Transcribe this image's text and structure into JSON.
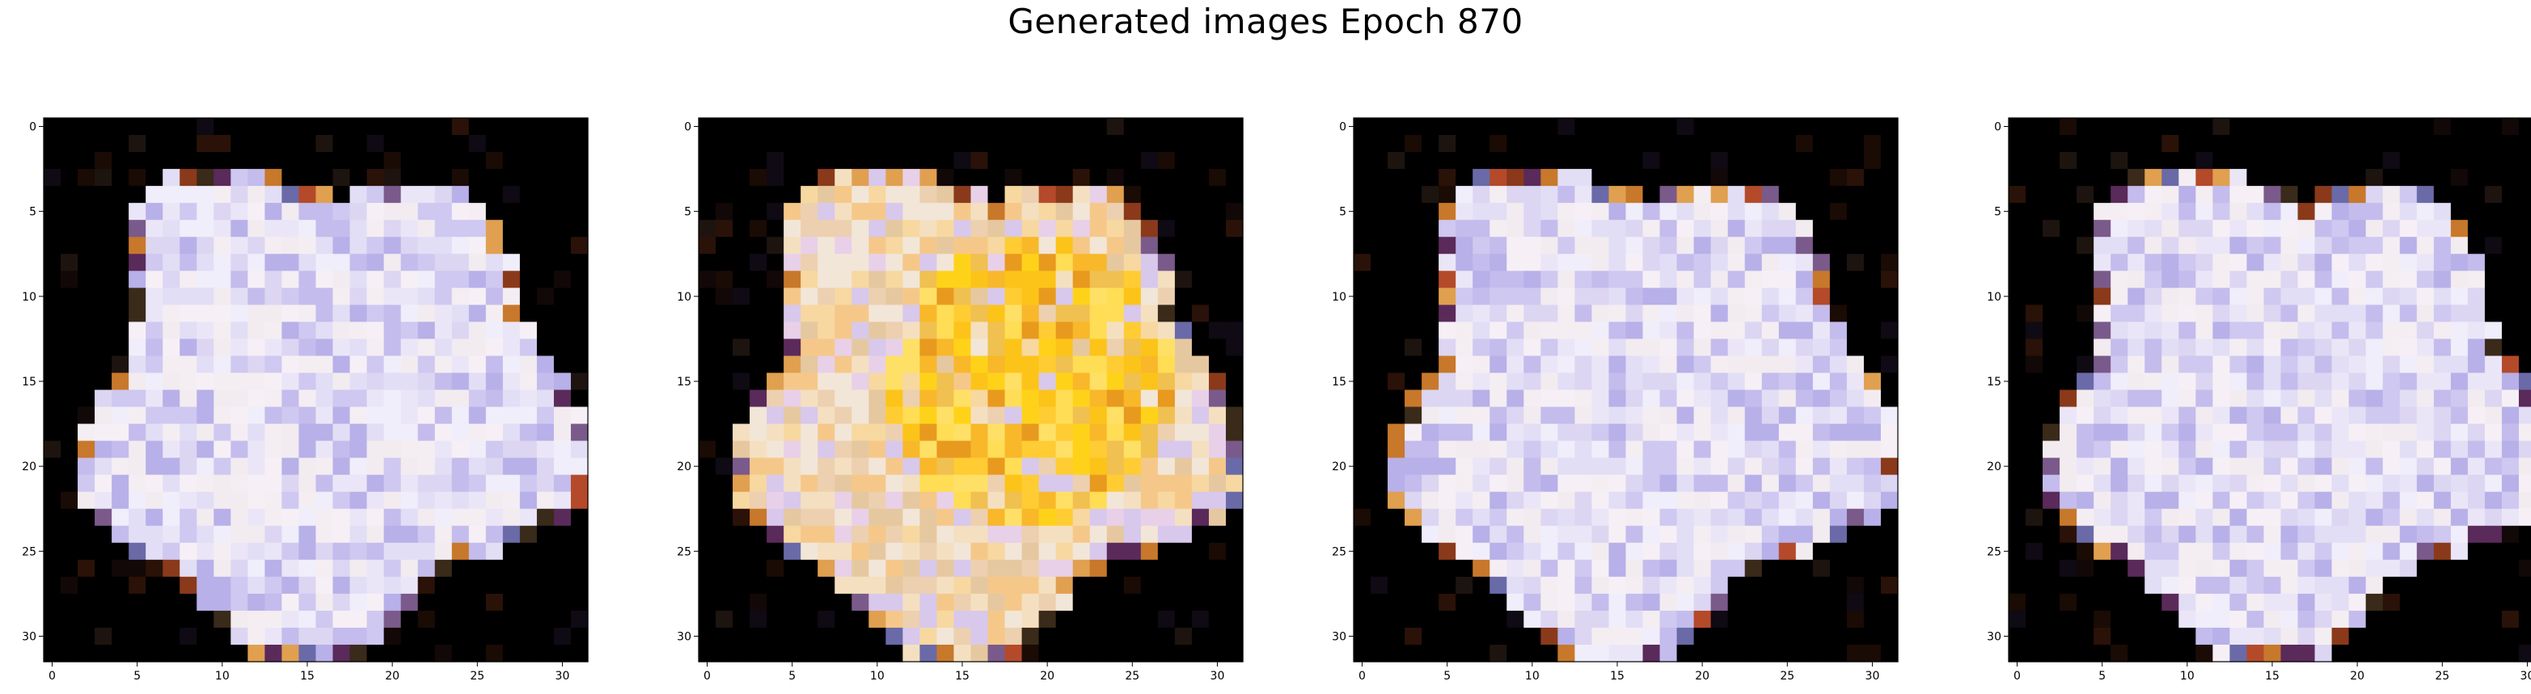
{
  "figure": {
    "title": "Generated images Epoch 870"
  },
  "chart_data": [
    {
      "type": "heatmap",
      "panel": 1,
      "xlim": [
        -0.5,
        31.5
      ],
      "ylim": [
        31.5,
        -0.5
      ],
      "x_ticks": [
        0,
        5,
        10,
        15,
        20,
        25,
        30
      ],
      "y_ticks": [
        0,
        5,
        10,
        15,
        20,
        25,
        30
      ],
      "rows": 32,
      "cols": 32,
      "palette": "lavender",
      "grid": false
    },
    {
      "type": "heatmap",
      "panel": 2,
      "xlim": [
        -0.5,
        31.5
      ],
      "ylim": [
        31.5,
        -0.5
      ],
      "x_ticks": [
        0,
        5,
        10,
        15,
        20,
        25,
        30
      ],
      "y_ticks": [
        0,
        5,
        10,
        15,
        20,
        25,
        30
      ],
      "rows": 32,
      "cols": 32,
      "palette": "yellow",
      "grid": false
    },
    {
      "type": "heatmap",
      "panel": 3,
      "xlim": [
        -0.5,
        31.5
      ],
      "ylim": [
        31.5,
        -0.5
      ],
      "x_ticks": [
        0,
        5,
        10,
        15,
        20,
        25,
        30
      ],
      "y_ticks": [
        0,
        5,
        10,
        15,
        20,
        25,
        30
      ],
      "rows": 32,
      "cols": 32,
      "palette": "lavender",
      "grid": false
    },
    {
      "type": "heatmap",
      "panel": 4,
      "xlim": [
        -0.5,
        31.5
      ],
      "ylim": [
        31.5,
        -0.5
      ],
      "x_ticks": [
        0,
        5,
        10,
        15,
        20,
        25,
        30
      ],
      "y_ticks": [
        0,
        5,
        10,
        15,
        20,
        25,
        30
      ],
      "rows": 32,
      "cols": 32,
      "palette": "lavender",
      "grid": false
    }
  ]
}
